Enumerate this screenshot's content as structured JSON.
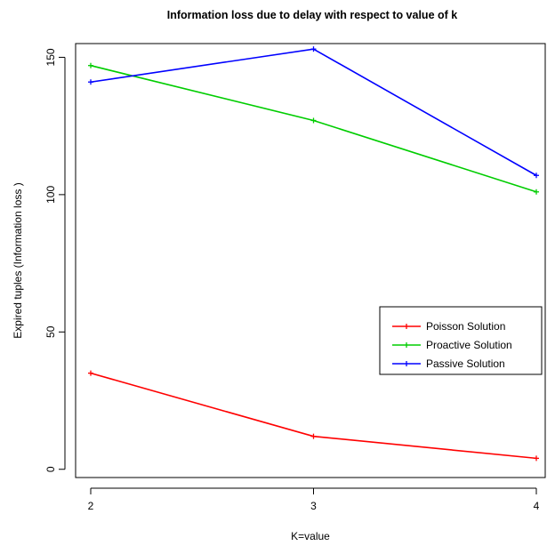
{
  "chart_data": {
    "type": "line",
    "title": "Information loss due to delay with respect to value of k",
    "xlabel": "K=value",
    "ylabel": "Expired tuples (Information loss )",
    "x": [
      2,
      3,
      4
    ],
    "xlim": [
      2,
      4
    ],
    "ylim": [
      -3,
      155
    ],
    "xticks": [
      "2",
      "3",
      "4"
    ],
    "yticks": [
      "0",
      "50",
      "100",
      "150"
    ],
    "ytick_values": [
      0,
      50,
      100,
      150
    ],
    "grid": false,
    "legend_position": "right",
    "series": [
      {
        "name": "Poisson Solution",
        "color": "#ff0000",
        "values": [
          35,
          12,
          4
        ]
      },
      {
        "name": "Proactive Solution",
        "color": "#00cd00",
        "values": [
          147,
          127,
          101
        ]
      },
      {
        "name": "Passive Solution",
        "color": "#0000ff",
        "values": [
          141,
          153,
          107
        ]
      }
    ]
  }
}
